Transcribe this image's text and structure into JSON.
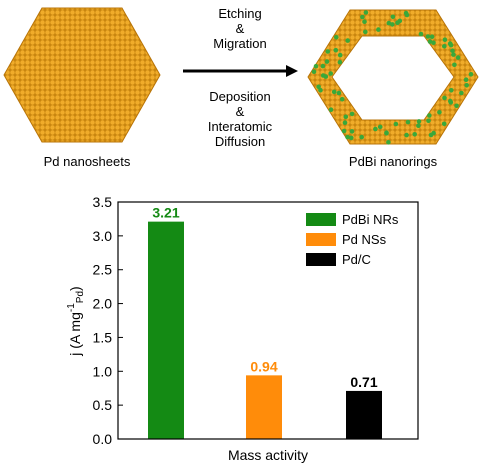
{
  "scheme": {
    "left_label": "Pd nanosheets",
    "right_label": "PdBi nanorings",
    "arrow_top": [
      "Etching",
      "&",
      "Migration"
    ],
    "arrow_bottom": [
      "Deposition",
      "&",
      "Interatomic",
      "Diffusion"
    ],
    "colors": {
      "pd": "#e8a020",
      "pd_dark": "#b87408",
      "bi": "#3aa83a"
    }
  },
  "chart_data": {
    "type": "bar",
    "xlabel": "Mass activity",
    "ylabel": "j (A mg",
    "ylabel_sup": "-1",
    "ylabel_sub": "Pd",
    "ylabel_close": ")",
    "ylim": [
      0,
      3.5
    ],
    "yticks": [
      "0.0",
      "0.5",
      "1.0",
      "1.5",
      "2.0",
      "2.5",
      "3.0",
      "3.5"
    ],
    "series": [
      {
        "name": "PdBi NRs",
        "value": 3.21,
        "label": "3.21",
        "color": "#148a14"
      },
      {
        "name": "Pd NSs",
        "value": 0.94,
        "label": "0.94",
        "color": "#ff8c0a"
      },
      {
        "name": "Pd/C",
        "value": 0.71,
        "label": "0.71",
        "color": "#000000"
      }
    ],
    "legend_position": "top-right",
    "grid": false
  }
}
